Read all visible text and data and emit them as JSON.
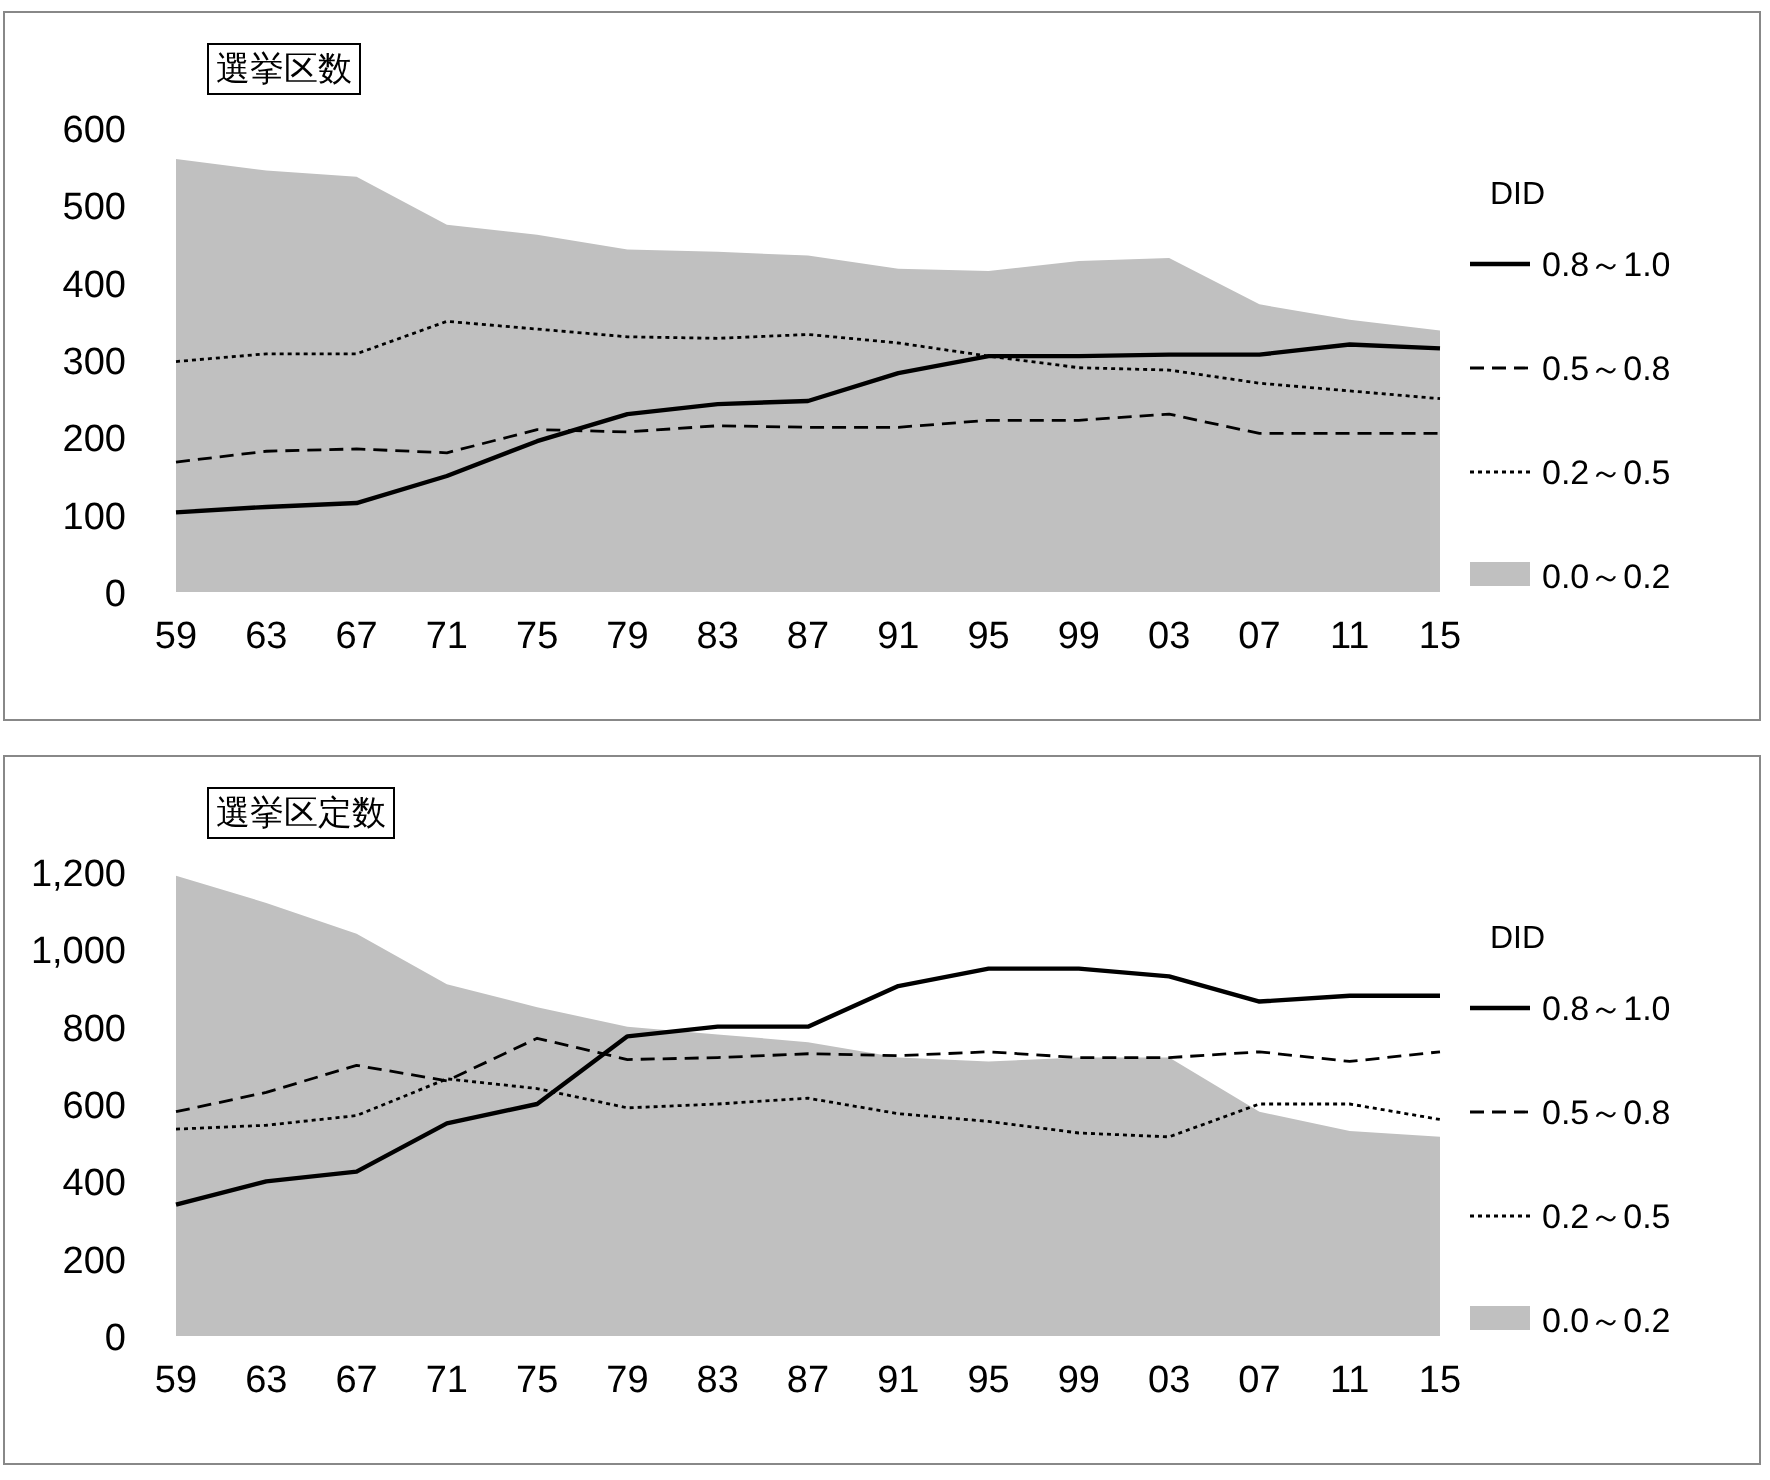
{
  "chart_data": [
    {
      "type": "line",
      "title": "選挙区数",
      "legend_title": "DID",
      "legend": "right",
      "grid": false,
      "categories": [
        "59",
        "63",
        "67",
        "71",
        "75",
        "79",
        "83",
        "87",
        "91",
        "95",
        "99",
        "03",
        "07",
        "11",
        "15"
      ],
      "ylim": [
        0,
        600
      ],
      "yticks": [
        0,
        100,
        200,
        300,
        400,
        500,
        600
      ],
      "series": [
        {
          "name": "0.8～1.0",
          "type": "line",
          "line_style": "solid",
          "color": "#000000",
          "values": [
            103,
            110,
            115,
            150,
            195,
            230,
            243,
            247,
            283,
            305,
            305,
            307,
            307,
            320,
            315
          ]
        },
        {
          "name": "0.5～0.8",
          "type": "line",
          "line_style": "dashed",
          "color": "#000000",
          "values": [
            168,
            182,
            185,
            180,
            210,
            207,
            215,
            213,
            213,
            222,
            222,
            230,
            205,
            205,
            205
          ]
        },
        {
          "name": "0.2～0.5",
          "type": "line",
          "line_style": "dotted",
          "color": "#000000",
          "values": [
            298,
            308,
            308,
            350,
            340,
            330,
            328,
            333,
            322,
            305,
            290,
            287,
            270,
            260,
            250
          ]
        },
        {
          "name": "0.0～0.2",
          "type": "area",
          "color": "#c0c0c0",
          "values": [
            560,
            545,
            537,
            475,
            462,
            443,
            440,
            435,
            418,
            415,
            428,
            432,
            372,
            352,
            338
          ]
        }
      ]
    },
    {
      "type": "line",
      "title": "選挙区定数",
      "legend_title": "DID",
      "legend": "right",
      "grid": false,
      "categories": [
        "59",
        "63",
        "67",
        "71",
        "75",
        "79",
        "83",
        "87",
        "91",
        "95",
        "99",
        "03",
        "07",
        "11",
        "15"
      ],
      "ylim": [
        0,
        1200
      ],
      "yticks": [
        {
          "value": 0,
          "label": "0"
        },
        {
          "value": 200,
          "label": "200"
        },
        {
          "value": 400,
          "label": "400"
        },
        {
          "value": 600,
          "label": "600"
        },
        {
          "value": 800,
          "label": "800"
        },
        {
          "value": 1000,
          "label": "1,000"
        },
        {
          "value": 1200,
          "label": "1,200"
        }
      ],
      "series": [
        {
          "name": "0.8～1.0",
          "type": "line",
          "line_style": "solid",
          "color": "#000000",
          "values": [
            340,
            400,
            425,
            550,
            600,
            775,
            800,
            800,
            905,
            950,
            950,
            930,
            865,
            880,
            880
          ]
        },
        {
          "name": "0.5～0.8",
          "type": "line",
          "line_style": "dashed",
          "color": "#000000",
          "values": [
            580,
            630,
            700,
            660,
            770,
            715,
            720,
            730,
            725,
            735,
            720,
            720,
            735,
            710,
            735
          ]
        },
        {
          "name": "0.2～0.5",
          "type": "line",
          "line_style": "dotted",
          "color": "#000000",
          "values": [
            535,
            545,
            570,
            665,
            640,
            590,
            600,
            615,
            575,
            555,
            525,
            515,
            600,
            600,
            560
          ]
        },
        {
          "name": "0.0～0.2",
          "type": "area",
          "color": "#c0c0c0",
          "values": [
            1190,
            1120,
            1040,
            910,
            850,
            800,
            780,
            760,
            720,
            710,
            720,
            720,
            580,
            530,
            515
          ]
        }
      ]
    }
  ]
}
